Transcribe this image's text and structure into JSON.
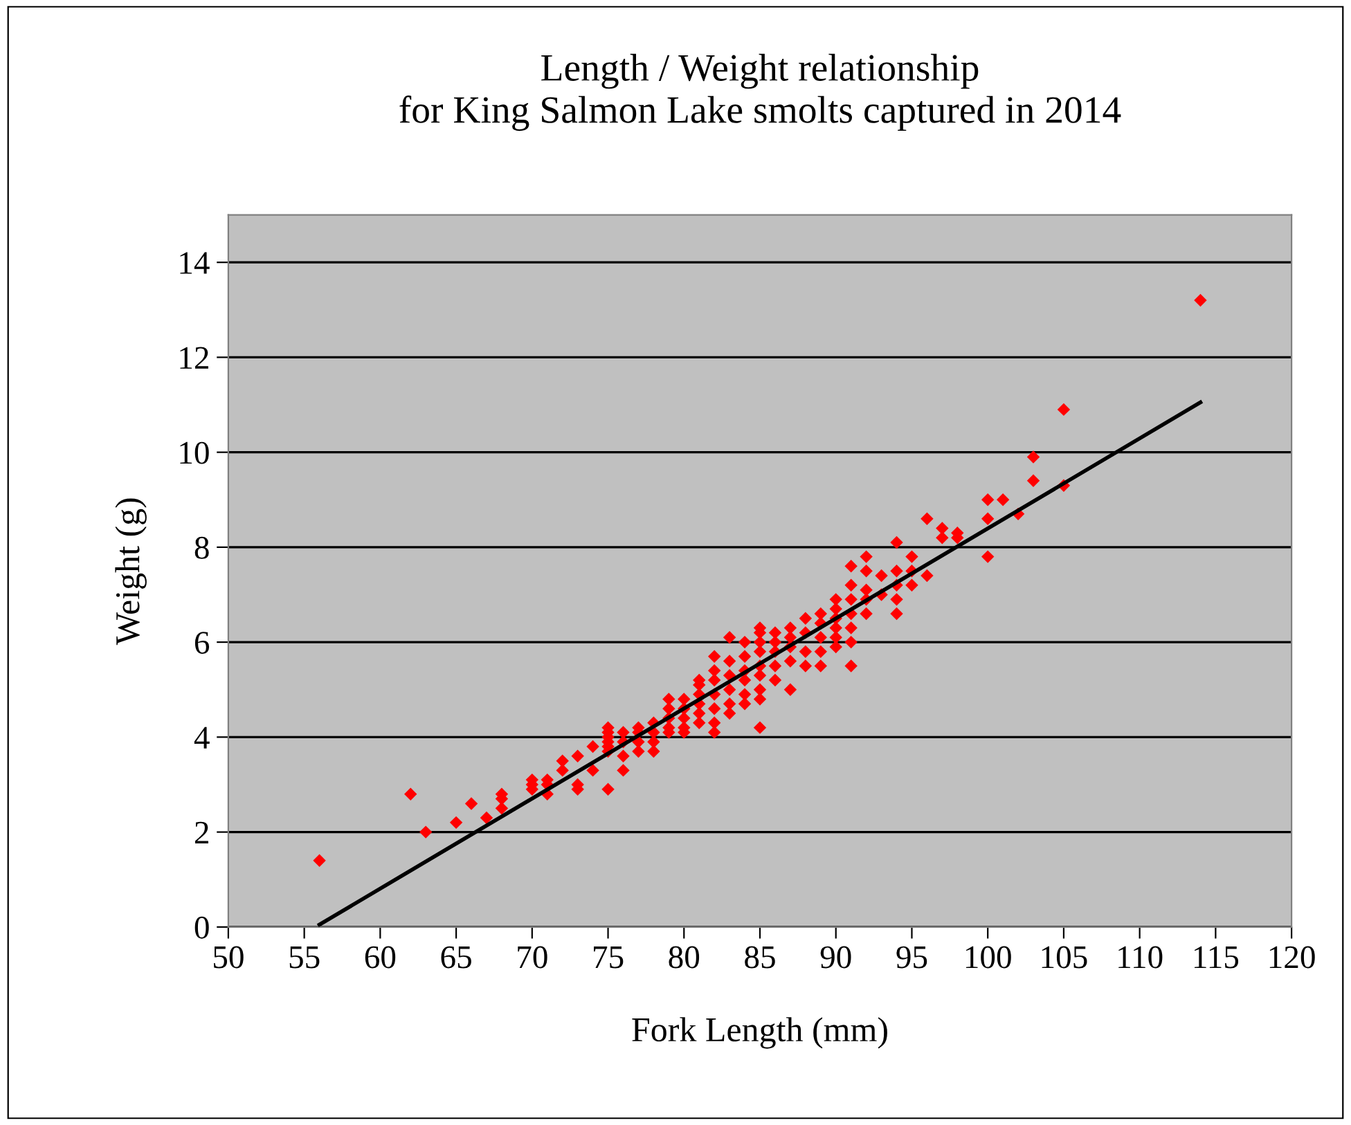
{
  "chart_data": {
    "type": "scatter",
    "title": "Length / Weight relationship\nfor King Salmon Lake smolts captured in 2014",
    "xlabel": "Fork Length (mm)",
    "ylabel": "Weight (g)",
    "xlim": [
      50,
      120
    ],
    "xticks": [
      50,
      55,
      60,
      65,
      70,
      75,
      80,
      85,
      90,
      95,
      100,
      105,
      110,
      115,
      120
    ],
    "ylim": [
      0,
      15
    ],
    "yticks": [
      0,
      2,
      4,
      6,
      8,
      10,
      12,
      14
    ],
    "grid": "y",
    "legend": false,
    "marker": "diamond",
    "series": [
      {
        "color": "#ff0000",
        "x": [
          56,
          62,
          63,
          65,
          66,
          67,
          68,
          68,
          68,
          70,
          70,
          70,
          71,
          71,
          71,
          72,
          72,
          73,
          73,
          73,
          74,
          74,
          75,
          75,
          75,
          75,
          75,
          75,
          75,
          76,
          76,
          76,
          76,
          77,
          77,
          77,
          77,
          78,
          78,
          78,
          78,
          79,
          79,
          79,
          79,
          79,
          80,
          80,
          80,
          80,
          80,
          81,
          81,
          81,
          81,
          81,
          81,
          82,
          82,
          82,
          82,
          82,
          82,
          82,
          83,
          83,
          83,
          83,
          83,
          83,
          84,
          84,
          84,
          84,
          84,
          84,
          85,
          85,
          85,
          85,
          85,
          85,
          85,
          85,
          85,
          86,
          86,
          86,
          86,
          86,
          87,
          87,
          87,
          87,
          87,
          88,
          88,
          88,
          88,
          89,
          89,
          89,
          89,
          89,
          90,
          90,
          90,
          90,
          90,
          90,
          91,
          91,
          91,
          91,
          91,
          91,
          91,
          92,
          92,
          92,
          92,
          92,
          93,
          93,
          94,
          94,
          94,
          94,
          94,
          95,
          95,
          95,
          96,
          96,
          97,
          97,
          98,
          98,
          100,
          100,
          100,
          101,
          102,
          103,
          103,
          105,
          105,
          114
        ],
        "values": [
          1.4,
          2.8,
          2.0,
          2.2,
          2.6,
          2.3,
          2.5,
          2.7,
          2.8,
          2.9,
          3.0,
          3.1,
          2.8,
          3.0,
          3.1,
          3.3,
          3.5,
          2.9,
          3.0,
          3.6,
          3.3,
          3.8,
          2.9,
          3.7,
          3.8,
          3.9,
          4.0,
          4.1,
          4.2,
          3.3,
          3.6,
          3.9,
          4.1,
          3.7,
          3.9,
          4.1,
          4.2,
          3.7,
          3.9,
          4.1,
          4.3,
          4.1,
          4.2,
          4.4,
          4.6,
          4.8,
          4.1,
          4.2,
          4.4,
          4.6,
          4.8,
          4.3,
          4.5,
          4.7,
          4.9,
          5.1,
          5.2,
          4.1,
          4.3,
          4.6,
          4.9,
          5.2,
          5.4,
          5.7,
          4.5,
          4.7,
          5.0,
          5.3,
          5.6,
          6.1,
          4.7,
          4.9,
          5.2,
          5.4,
          5.7,
          6.0,
          4.2,
          4.8,
          5.0,
          5.3,
          5.5,
          5.8,
          6.0,
          6.2,
          6.3,
          5.2,
          5.5,
          5.8,
          6.0,
          6.2,
          5.0,
          5.6,
          5.9,
          6.1,
          6.3,
          5.5,
          5.8,
          6.2,
          6.5,
          5.5,
          5.8,
          6.1,
          6.4,
          6.6,
          5.9,
          6.1,
          6.3,
          6.5,
          6.7,
          6.9,
          5.5,
          6.0,
          6.3,
          6.6,
          6.9,
          7.2,
          7.6,
          6.6,
          6.9,
          7.1,
          7.5,
          7.8,
          7.0,
          7.4,
          6.6,
          6.9,
          7.2,
          7.5,
          8.1,
          7.2,
          7.5,
          7.8,
          7.4,
          8.6,
          8.2,
          8.4,
          8.2,
          8.3,
          7.8,
          8.6,
          9.0,
          9.0,
          8.7,
          9.4,
          9.9,
          9.3,
          10.9,
          13.2
        ]
      },
      {
        "type": "line",
        "color": "#000000",
        "marker": "none",
        "line_style": "solid",
        "x": [
          56,
          114
        ],
        "values": [
          0.05,
          11.05
        ]
      }
    ]
  }
}
